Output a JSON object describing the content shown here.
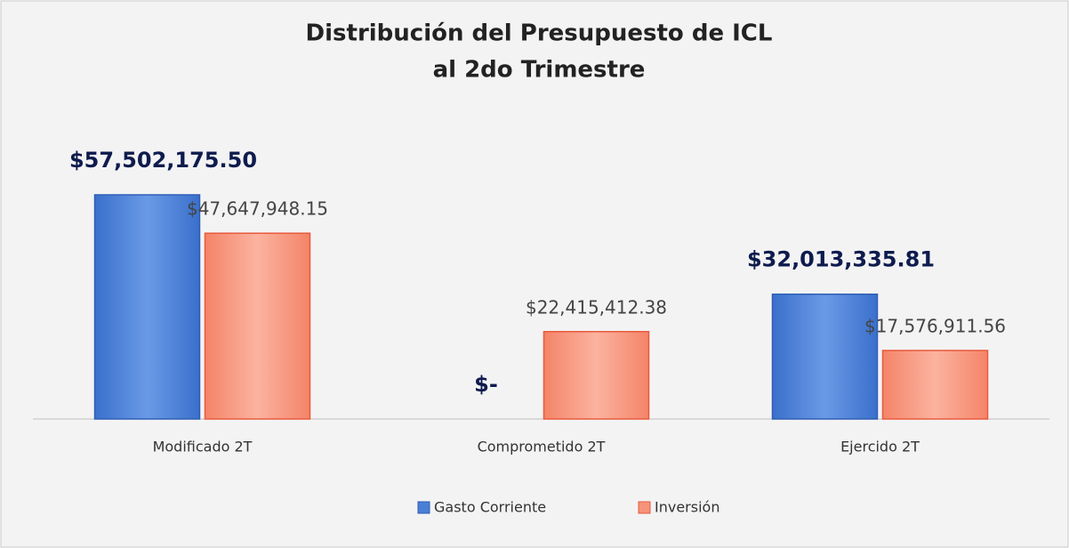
{
  "chart_data": {
    "type": "bar",
    "title": [
      "Distribución  del Presupuesto de ICL",
      "al 2do Trimestre"
    ],
    "categories": [
      "Modificado 2T",
      "Comprometido 2T",
      "Ejercido 2T"
    ],
    "series": [
      {
        "name": "Gasto Corriente",
        "color": "#4a7fd6",
        "values": [
          57502175.5,
          0,
          32013335.81
        ],
        "value_labels": [
          "$57,502,175.50",
          "$-",
          "$32,013,335.81"
        ]
      },
      {
        "name": "Inversión",
        "color": "#f5937b",
        "values": [
          47647948.15,
          22415412.38,
          17576911.56
        ],
        "value_labels": [
          "$47,647,948.15",
          "$22,415,412.38",
          "$17,576,911.56"
        ]
      }
    ],
    "legend": "bottom"
  }
}
